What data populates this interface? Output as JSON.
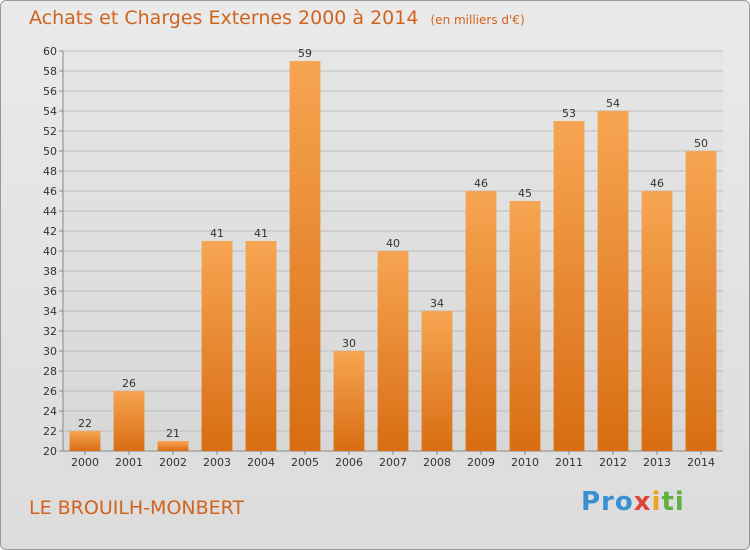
{
  "chart_data": {
    "type": "bar",
    "title": "Achats et Charges Externes 2000 à 2014",
    "unit": "(en milliers d'€)",
    "categories": [
      "2000",
      "2001",
      "2002",
      "2003",
      "2004",
      "2005",
      "2006",
      "2007",
      "2008",
      "2009",
      "2010",
      "2011",
      "2012",
      "2013",
      "2014"
    ],
    "values": [
      22,
      26,
      21,
      41,
      41,
      59,
      30,
      40,
      34,
      46,
      45,
      53,
      54,
      46,
      50
    ],
    "ylim": [
      20,
      60
    ],
    "yticks": [
      20,
      22,
      24,
      26,
      28,
      30,
      32,
      34,
      36,
      38,
      40,
      42,
      44,
      46,
      48,
      50,
      52,
      54,
      56,
      58,
      60
    ],
    "grid": true,
    "bar_color": "#ee8c2e"
  },
  "footer": {
    "commune": "LE BROUILH-MONBERT",
    "logo": [
      "Pro",
      "x",
      "i",
      "ti"
    ]
  }
}
